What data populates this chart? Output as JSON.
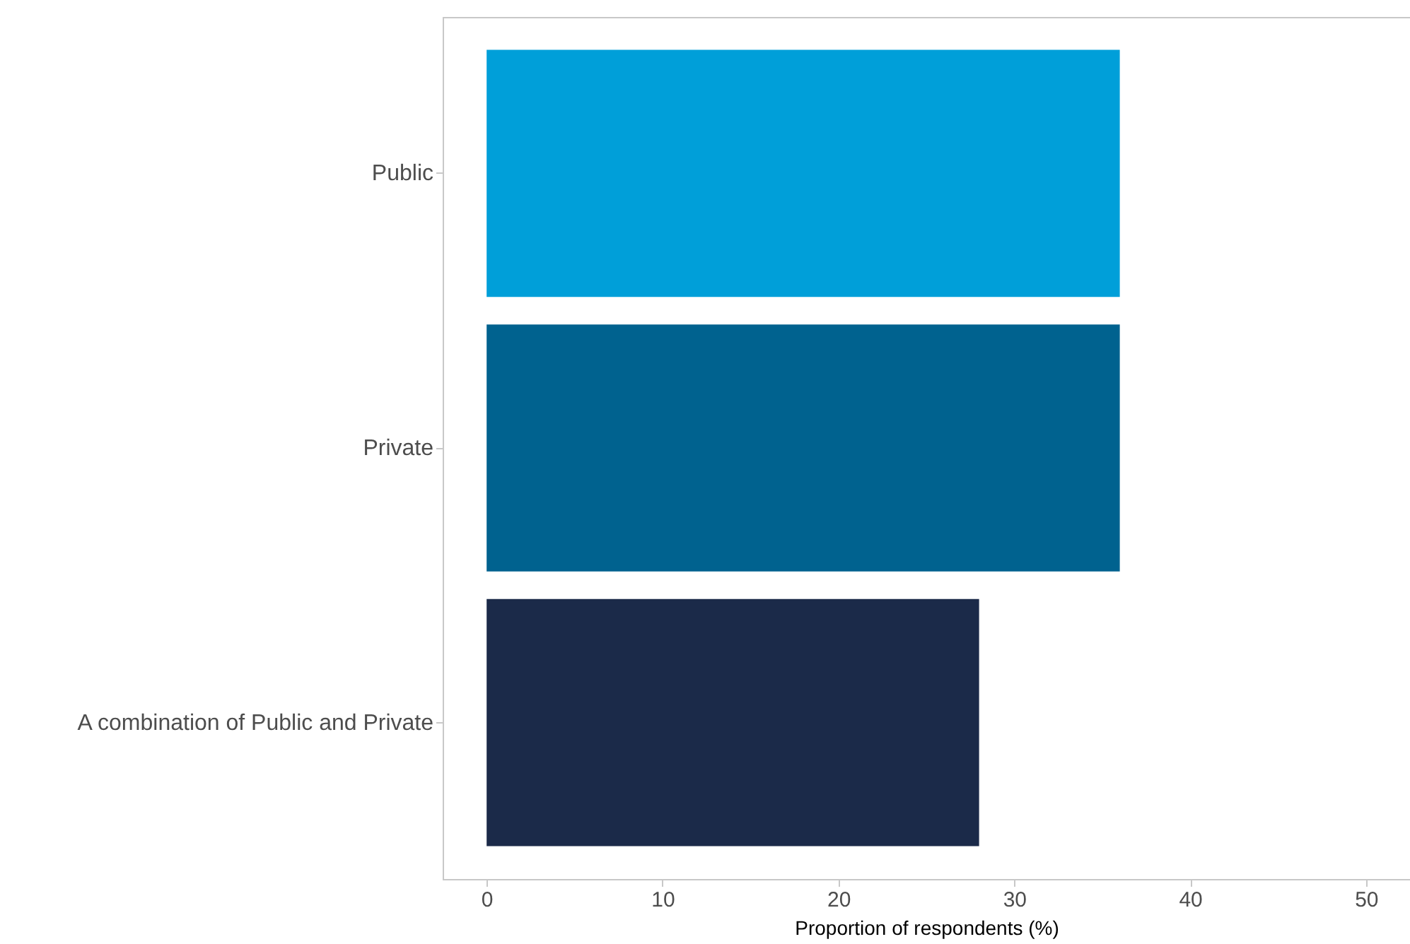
{
  "chart_data": {
    "type": "bar",
    "orientation": "horizontal",
    "xlabel": "Proportion of respondents (%)",
    "categories": [
      "Public",
      "Private",
      "A combination of Public and Private"
    ],
    "values": [
      36,
      36,
      28
    ],
    "colors": [
      "#009fd9",
      "#00628f",
      "#1b2a49"
    ],
    "xlim": [
      -2.5,
      52.5
    ],
    "xticks": [
      0,
      10,
      20,
      30,
      40,
      50
    ],
    "grid": false
  }
}
